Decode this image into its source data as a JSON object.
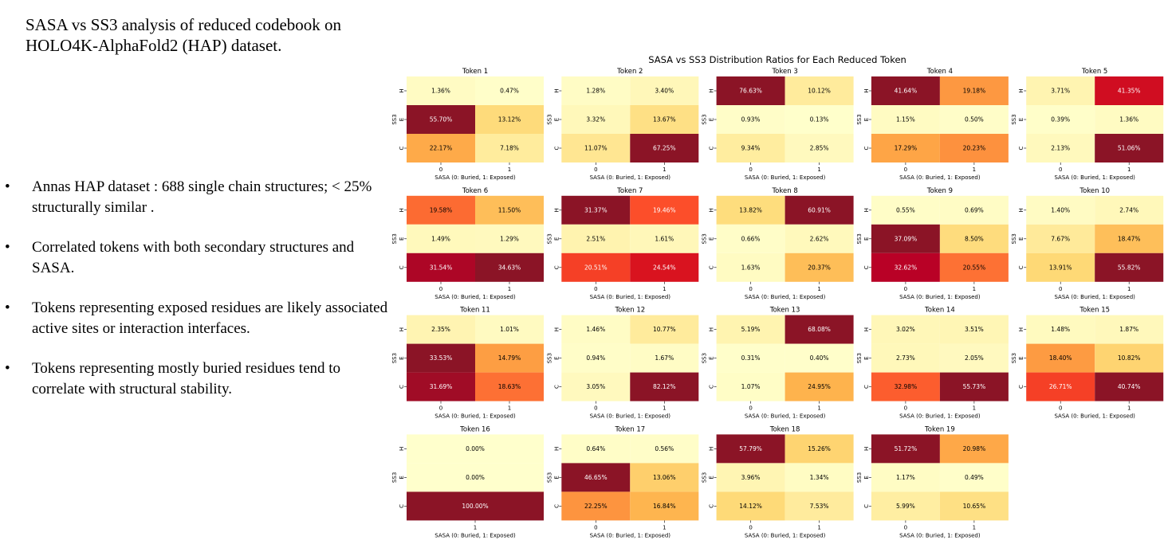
{
  "slide": {
    "title": "SASA vs SS3 analysis of reduced codebook on HOLO4K-AlphaFold2 (HAP) dataset.",
    "bullet_glyph": "•",
    "bullets": [
      "Annas HAP dataset : 688 single chain structures; < 25% structurally similar .",
      "Correlated tokens with both secondary structures and SASA.",
      "Tokens representing exposed residues are likely associated active sites or interaction interfaces.",
      "Tokens representing mostly buried residues tend to correlate with structural stability."
    ]
  },
  "chart_data": {
    "type": "heatmap",
    "title": "SASA vs SS3 Distribution Ratios for Each Reduced Token",
    "xlabel": "SASA (0: Buried, 1: Exposed)",
    "ylabel": "SS3",
    "row_labels": [
      "H",
      "E",
      "C"
    ],
    "col_labels": [
      "0",
      "1"
    ],
    "colormap": "YlOrRd",
    "colors": {
      "low": "#ffffcc",
      "high": "#8b1426"
    },
    "tokens": [
      {
        "title": "Token 1",
        "cols": [
          "0",
          "1"
        ],
        "values": [
          [
            1.36,
            0.47
          ],
          [
            55.7,
            13.12
          ],
          [
            22.17,
            7.18
          ]
        ],
        "labels": [
          [
            "1.36%",
            "0.47%"
          ],
          [
            "55.70%",
            "13.12%"
          ],
          [
            "22.17%",
            "7.18%"
          ]
        ]
      },
      {
        "title": "Token 2",
        "cols": [
          "0",
          "1"
        ],
        "values": [
          [
            1.28,
            3.4
          ],
          [
            3.32,
            13.67
          ],
          [
            11.07,
            67.25
          ]
        ],
        "labels": [
          [
            "1.28%",
            "3.40%"
          ],
          [
            "3.32%",
            "13.67%"
          ],
          [
            "11.07%",
            "67.25%"
          ]
        ]
      },
      {
        "title": "Token 3",
        "cols": [
          "0",
          "1"
        ],
        "values": [
          [
            76.63,
            10.12
          ],
          [
            0.93,
            0.13
          ],
          [
            9.34,
            2.85
          ]
        ],
        "labels": [
          [
            "76.63%",
            "10.12%"
          ],
          [
            "0.93%",
            "0.13%"
          ],
          [
            "9.34%",
            "2.85%"
          ]
        ]
      },
      {
        "title": "Token 4",
        "cols": [
          "0",
          "1"
        ],
        "values": [
          [
            41.64,
            19.18
          ],
          [
            1.15,
            0.5
          ],
          [
            17.29,
            20.23
          ]
        ],
        "labels": [
          [
            "41.64%",
            "19.18%"
          ],
          [
            "1.15%",
            "0.50%"
          ],
          [
            "17.29%",
            "20.23%"
          ]
        ]
      },
      {
        "title": "Token 5",
        "cols": [
          "0",
          "1"
        ],
        "values": [
          [
            3.71,
            41.35
          ],
          [
            0.39,
            1.36
          ],
          [
            2.13,
            51.06
          ]
        ],
        "labels": [
          [
            "3.71%",
            "41.35%"
          ],
          [
            "0.39%",
            "1.36%"
          ],
          [
            "2.13%",
            "51.06%"
          ]
        ]
      },
      {
        "title": "Token 6",
        "cols": [
          "0",
          "1"
        ],
        "values": [
          [
            19.58,
            11.5
          ],
          [
            1.49,
            1.29
          ],
          [
            31.54,
            34.63
          ]
        ],
        "labels": [
          [
            "19.58%",
            "11.50%"
          ],
          [
            "1.49%",
            "1.29%"
          ],
          [
            "31.54%",
            "34.63%"
          ]
        ]
      },
      {
        "title": "Token 7",
        "cols": [
          "0",
          "1"
        ],
        "values": [
          [
            31.37,
            19.46
          ],
          [
            2.51,
            1.61
          ],
          [
            20.51,
            24.54
          ]
        ],
        "labels": [
          [
            "31.37%",
            "19.46%"
          ],
          [
            "2.51%",
            "1.61%"
          ],
          [
            "20.51%",
            "24.54%"
          ]
        ]
      },
      {
        "title": "Token 8",
        "cols": [
          "0",
          "1"
        ],
        "values": [
          [
            13.82,
            60.91
          ],
          [
            0.66,
            2.62
          ],
          [
            1.63,
            20.37
          ]
        ],
        "labels": [
          [
            "13.82%",
            "60.91%"
          ],
          [
            "0.66%",
            "2.62%"
          ],
          [
            "1.63%",
            "20.37%"
          ]
        ]
      },
      {
        "title": "Token 9",
        "cols": [
          "0",
          "1"
        ],
        "values": [
          [
            0.55,
            0.69
          ],
          [
            37.09,
            8.5
          ],
          [
            32.62,
            20.55
          ]
        ],
        "labels": [
          [
            "0.55%",
            "0.69%"
          ],
          [
            "37.09%",
            "8.50%"
          ],
          [
            "32.62%",
            "20.55%"
          ]
        ]
      },
      {
        "title": "Token 10",
        "cols": [
          "0",
          "1"
        ],
        "values": [
          [
            1.4,
            2.74
          ],
          [
            7.67,
            18.47
          ],
          [
            13.91,
            55.82
          ]
        ],
        "labels": [
          [
            "1.40%",
            "2.74%"
          ],
          [
            "7.67%",
            "18.47%"
          ],
          [
            "13.91%",
            "55.82%"
          ]
        ]
      },
      {
        "title": "Token 11",
        "cols": [
          "0",
          "1"
        ],
        "values": [
          [
            2.35,
            1.01
          ],
          [
            33.53,
            14.79
          ],
          [
            31.69,
            18.63
          ]
        ],
        "labels": [
          [
            "2.35%",
            "1.01%"
          ],
          [
            "33.53%",
            "14.79%"
          ],
          [
            "31.69%",
            "18.63%"
          ]
        ]
      },
      {
        "title": "Token 12",
        "cols": [
          "0",
          "1"
        ],
        "values": [
          [
            1.46,
            10.77
          ],
          [
            0.94,
            1.67
          ],
          [
            3.05,
            82.12
          ]
        ],
        "labels": [
          [
            "1.46%",
            "10.77%"
          ],
          [
            "0.94%",
            "1.67%"
          ],
          [
            "3.05%",
            "82.12%"
          ]
        ]
      },
      {
        "title": "Token 13",
        "cols": [
          "0",
          "1"
        ],
        "values": [
          [
            5.19,
            68.08
          ],
          [
            0.31,
            0.4
          ],
          [
            1.07,
            24.95
          ]
        ],
        "labels": [
          [
            "5.19%",
            "68.08%"
          ],
          [
            "0.31%",
            "0.40%"
          ],
          [
            "1.07%",
            "24.95%"
          ]
        ]
      },
      {
        "title": "Token 14",
        "cols": [
          "0",
          "1"
        ],
        "values": [
          [
            3.02,
            3.51
          ],
          [
            2.73,
            2.05
          ],
          [
            32.98,
            55.73
          ]
        ],
        "labels": [
          [
            "3.02%",
            "3.51%"
          ],
          [
            "2.73%",
            "2.05%"
          ],
          [
            "32.98%",
            "55.73%"
          ]
        ]
      },
      {
        "title": "Token 15",
        "cols": [
          "0",
          "1"
        ],
        "values": [
          [
            1.48,
            1.87
          ],
          [
            18.4,
            10.82
          ],
          [
            26.71,
            40.74
          ]
        ],
        "labels": [
          [
            "1.48%",
            "1.87%"
          ],
          [
            "18.40%",
            "10.82%"
          ],
          [
            "26.71%",
            "40.74%"
          ]
        ]
      },
      {
        "title": "Token 16",
        "cols": [
          "1"
        ],
        "values": [
          [
            0.0
          ],
          [
            0.0
          ],
          [
            100.0
          ]
        ],
        "labels": [
          [
            "0.00%"
          ],
          [
            "0.00%"
          ],
          [
            "100.00%"
          ]
        ]
      },
      {
        "title": "Token 17",
        "cols": [
          "0",
          "1"
        ],
        "values": [
          [
            0.64,
            0.56
          ],
          [
            46.65,
            13.06
          ],
          [
            22.25,
            16.84
          ]
        ],
        "labels": [
          [
            "0.64%",
            "0.56%"
          ],
          [
            "46.65%",
            "13.06%"
          ],
          [
            "22.25%",
            "16.84%"
          ]
        ]
      },
      {
        "title": "Token 18",
        "cols": [
          "0",
          "1"
        ],
        "values": [
          [
            57.79,
            15.26
          ],
          [
            3.96,
            1.34
          ],
          [
            14.12,
            7.53
          ]
        ],
        "labels": [
          [
            "57.79%",
            "15.26%"
          ],
          [
            "3.96%",
            "1.34%"
          ],
          [
            "14.12%",
            "7.53%"
          ]
        ]
      },
      {
        "title": "Token 19",
        "cols": [
          "0",
          "1"
        ],
        "values": [
          [
            51.72,
            20.98
          ],
          [
            1.17,
            0.49
          ],
          [
            5.99,
            10.65
          ]
        ],
        "labels": [
          [
            "51.72%",
            "20.98%"
          ],
          [
            "1.17%",
            "0.49%"
          ],
          [
            "5.99%",
            "10.65%"
          ]
        ]
      }
    ]
  }
}
